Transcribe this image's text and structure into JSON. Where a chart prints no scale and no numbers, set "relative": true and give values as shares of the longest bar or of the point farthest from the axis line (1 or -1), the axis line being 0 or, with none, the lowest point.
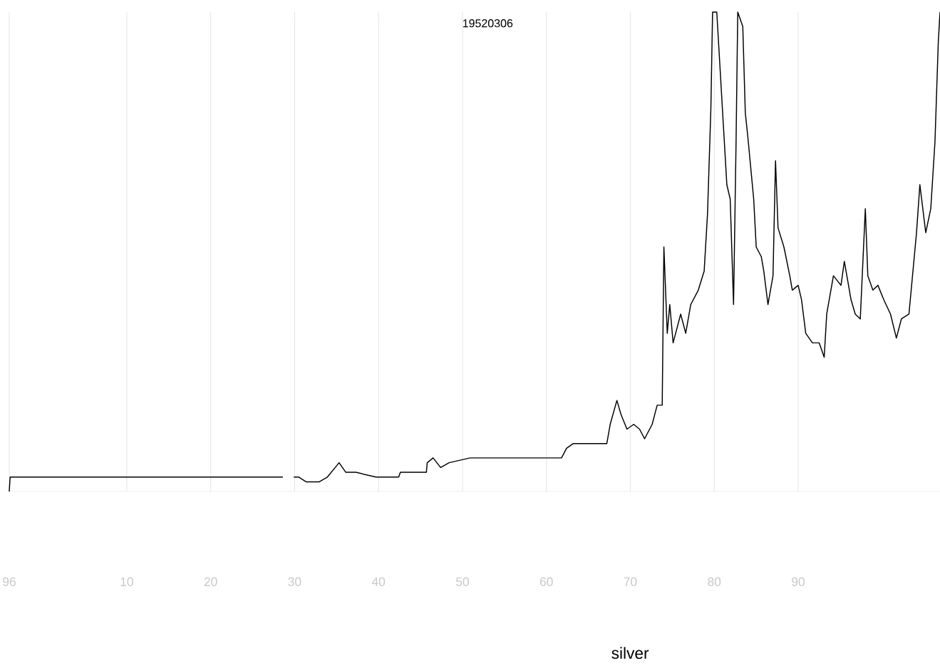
{
  "chart_data": {
    "type": "line",
    "title": "19520306",
    "xlabel": "silver",
    "relative": true,
    "color": "#000000",
    "grid": "x",
    "xlim": [
      1896,
      2006.9
    ],
    "xticks": [
      {
        "value": 1896,
        "label": "96"
      },
      {
        "value": 1910,
        "label": "10"
      },
      {
        "value": 1920,
        "label": "20"
      },
      {
        "value": 1930,
        "label": "30"
      },
      {
        "value": 1940,
        "label": "40"
      },
      {
        "value": 1950,
        "label": "50"
      },
      {
        "value": 1960,
        "label": "60"
      },
      {
        "value": 1970,
        "label": "70"
      },
      {
        "value": 1980,
        "label": "80"
      },
      {
        "value": 1990,
        "label": "90"
      }
    ],
    "x": [
      1896.0,
      1896.1,
      1928.6,
      1929.3,
      1929.9,
      1930.5,
      1931.4,
      1932.9,
      1933.9,
      1935.3,
      1936.1,
      1937.3,
      1939.7,
      1942.4,
      1942.6,
      1945.7,
      1945.8,
      1946.5,
      1947.4,
      1948.4,
      1950.9,
      1952.6,
      1955.2,
      1957.7,
      1961.8,
      1962.4,
      1963.2,
      1967.2,
      1967.6,
      1968.4,
      1968.9,
      1969.6,
      1970.4,
      1971.1,
      1971.7,
      1972.6,
      1973.2,
      1973.8,
      1974.0,
      1974.4,
      1974.7,
      1975.1,
      1976.0,
      1976.6,
      1977.2,
      1978.1,
      1978.8,
      1979.2,
      1979.6,
      1979.8,
      1980.3,
      1980.6,
      1981.1,
      1981.5,
      1981.9,
      1982.3,
      1982.6,
      1982.8,
      1983.4,
      1983.7,
      1984.0,
      1984.7,
      1985.0,
      1985.6,
      1985.9,
      1986.4,
      1987.0,
      1987.3,
      1987.6,
      1988.3,
      1989.0,
      1989.3,
      1990.0,
      1990.4,
      1990.9,
      1991.7,
      1992.5,
      1993.1,
      1993.4,
      1994.2,
      1995.1,
      1995.5,
      1996.3,
      1996.8,
      1997.4,
      1998.0,
      1998.3,
      1998.9,
      1999.5,
      2000.2,
      2001.0,
      2001.7,
      2002.3,
      2003.2,
      2004.1,
      2004.5,
      2005.2,
      2005.8,
      2006.3,
      2006.7,
      2006.9
    ],
    "values": [
      0,
      0.03,
      0.03,
      null,
      0.03,
      0.03,
      0.02,
      0.02,
      0.03,
      0.06,
      0.04,
      0.04,
      0.03,
      0.03,
      0.04,
      0.04,
      0.06,
      0.07,
      0.05,
      0.06,
      0.07,
      0.07,
      0.07,
      0.07,
      0.07,
      0.09,
      0.1,
      0.1,
      0.14,
      0.19,
      0.16,
      0.13,
      0.14,
      0.13,
      0.11,
      0.14,
      0.18,
      0.18,
      0.51,
      0.33,
      0.39,
      0.31,
      0.37,
      0.33,
      0.39,
      0.42,
      0.46,
      0.58,
      0.8,
      1,
      1,
      0.91,
      0.76,
      0.64,
      0.61,
      0.39,
      0.73,
      1,
      0.97,
      0.79,
      0.74,
      0.61,
      0.51,
      0.49,
      0.46,
      0.39,
      0.45,
      0.69,
      0.55,
      0.51,
      0.45,
      0.42,
      0.43,
      0.4,
      0.33,
      0.31,
      0.31,
      0.28,
      0.37,
      0.45,
      0.43,
      0.48,
      0.4,
      0.37,
      0.36,
      0.59,
      0.45,
      0.42,
      0.43,
      0.4,
      0.37,
      0.32,
      0.36,
      0.37,
      0.54,
      0.64,
      0.54,
      0.59,
      0.73,
      0.94,
      1
    ]
  }
}
